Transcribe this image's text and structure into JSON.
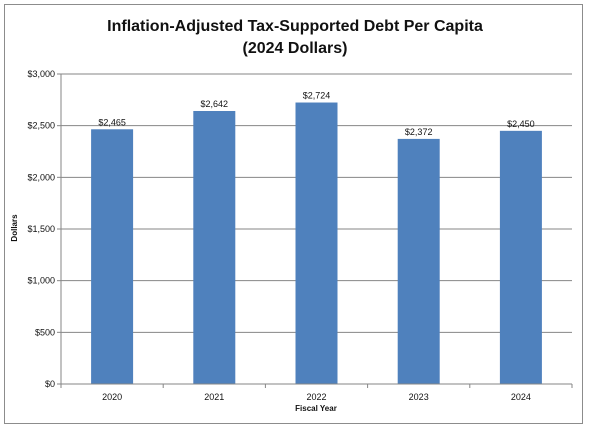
{
  "chart_data": {
    "type": "bar",
    "title": "Inflation-Adjusted Tax-Supported Debt Per Capita",
    "subtitle": "(2024 Dollars)",
    "xlabel": "Fiscal Year",
    "ylabel": "Dollars",
    "categories": [
      "2020",
      "2021",
      "2022",
      "2023",
      "2024"
    ],
    "values": [
      2465,
      2642,
      2724,
      2372,
      2450
    ],
    "data_labels": [
      "$2,465",
      "$2,642",
      "$2,724",
      "$2,372",
      "$2,450"
    ],
    "ylim": [
      0,
      3000
    ],
    "yticks": [
      0,
      500,
      1000,
      1500,
      2000,
      2500,
      3000
    ],
    "ytick_labels": [
      "$0",
      "$500",
      "$1,000",
      "$1,500",
      "$2,000",
      "$2,500",
      "$3,000"
    ],
    "grid": true,
    "legend": "none",
    "bar_color": "#4f81bd"
  }
}
